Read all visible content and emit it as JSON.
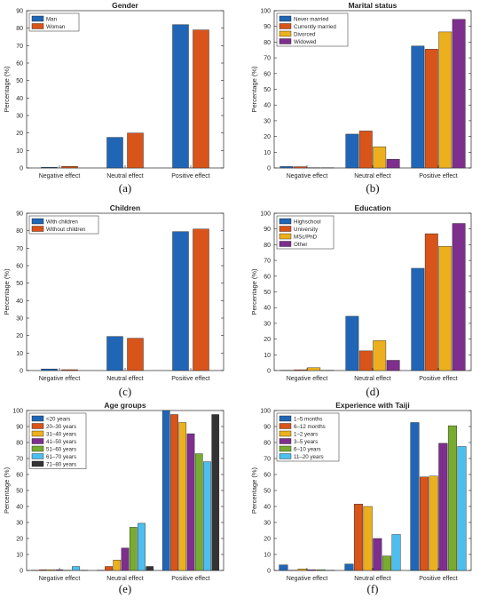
{
  "chart_data": [
    {
      "type": "bar",
      "title": "Gender",
      "ylabel": "Percentage (%)",
      "caption": "(a)",
      "categories": [
        "Negative effect",
        "Neutral effect",
        "Positive effect"
      ],
      "ylim": [
        0,
        90
      ],
      "yticks": [
        0,
        10,
        20,
        30,
        40,
        50,
        60,
        70,
        80,
        90
      ],
      "legend_position": "top-left",
      "series": [
        {
          "name": "Man",
          "color": "#2166b6",
          "values": [
            0.4,
            17.5,
            82
          ]
        },
        {
          "name": "Woman",
          "color": "#d8541a",
          "values": [
            0.9,
            20,
            79
          ]
        }
      ]
    },
    {
      "type": "bar",
      "title": "Marital status",
      "ylabel": "Percentage (%)",
      "caption": "(b)",
      "categories": [
        "Negative effect",
        "Neutral effect",
        "Positive effect"
      ],
      "ylim": [
        0,
        100
      ],
      "yticks": [
        0,
        10,
        20,
        30,
        40,
        50,
        60,
        70,
        80,
        90,
        100
      ],
      "legend_position": "top-left",
      "series": [
        {
          "name": "Never married",
          "color": "#2166b6",
          "values": [
            0.9,
            21.5,
            77.5
          ]
        },
        {
          "name": "Currently married",
          "color": "#d8541a",
          "values": [
            0.8,
            23.5,
            75.5
          ]
        },
        {
          "name": "Divorced",
          "color": "#ecb01f",
          "values": [
            0,
            13.5,
            86.5
          ]
        },
        {
          "name": "Widowed",
          "color": "#7e2f8e",
          "values": [
            0,
            5.5,
            94.5
          ]
        }
      ]
    },
    {
      "type": "bar",
      "title": "Children",
      "ylabel": "Percentage (%)",
      "caption": "(c)",
      "categories": [
        "Negative effect",
        "Neutral effect",
        "Positive effect"
      ],
      "ylim": [
        0,
        90
      ],
      "yticks": [
        0,
        10,
        20,
        30,
        40,
        50,
        60,
        70,
        80,
        90
      ],
      "legend_position": "top-left",
      "series": [
        {
          "name": "With children",
          "color": "#2166b6",
          "values": [
            0.9,
            19.5,
            79.5
          ]
        },
        {
          "name": "Without children",
          "color": "#d8541a",
          "values": [
            0.5,
            18.5,
            81
          ]
        }
      ]
    },
    {
      "type": "bar",
      "title": "Education",
      "ylabel": "Percentage (%)",
      "caption": "(d)",
      "categories": [
        "Negative effect",
        "Neutral effect",
        "Positive effect"
      ],
      "ylim": [
        0,
        100
      ],
      "yticks": [
        0,
        10,
        20,
        30,
        40,
        50,
        60,
        70,
        80,
        90,
        100
      ],
      "legend_position": "top-left",
      "series": [
        {
          "name": "Highschool",
          "color": "#2166b6",
          "values": [
            0,
            34.5,
            65
          ]
        },
        {
          "name": "University",
          "color": "#d8541a",
          "values": [
            0.5,
            12.5,
            87
          ]
        },
        {
          "name": "MSc/PhD",
          "color": "#ecb01f",
          "values": [
            1.8,
            19,
            79
          ]
        },
        {
          "name": "Other",
          "color": "#7e2f8e",
          "values": [
            0,
            6.5,
            93.5
          ]
        }
      ]
    },
    {
      "type": "bar",
      "title": "Age groups",
      "ylabel": "Percentage (%)",
      "caption": "(e)",
      "categories": [
        "Negative effect",
        "Neutral effect",
        "Positive effect"
      ],
      "ylim": [
        0,
        100
      ],
      "yticks": [
        0,
        10,
        20,
        30,
        40,
        50,
        60,
        70,
        80,
        90,
        100
      ],
      "legend_position": "top-left",
      "series": [
        {
          "name": "<20 years",
          "color": "#2166b6",
          "values": [
            0,
            0,
            100
          ]
        },
        {
          "name": "20–30 years",
          "color": "#d8541a",
          "values": [
            0.5,
            2.5,
            97.5
          ]
        },
        {
          "name": "31–40 years",
          "color": "#ecb01f",
          "values": [
            0.5,
            6.5,
            92.5
          ]
        },
        {
          "name": "41–50 years",
          "color": "#7e2f8e",
          "values": [
            0.5,
            14,
            85.5
          ]
        },
        {
          "name": "51–60 years",
          "color": "#77ac30",
          "values": [
            0,
            27,
            73
          ]
        },
        {
          "name": "61–70 years",
          "color": "#4dbeee",
          "values": [
            2.5,
            29.5,
            68
          ]
        },
        {
          "name": "71–80 years",
          "color": "#333333",
          "values": [
            0,
            2.5,
            97.5
          ]
        }
      ]
    },
    {
      "type": "bar",
      "title": "Experience with Taiji",
      "ylabel": "Percentage (%)",
      "caption": "(f)",
      "categories": [
        "Negative effect",
        "Neutral effect",
        "Positive effect"
      ],
      "ylim": [
        0,
        100
      ],
      "yticks": [
        0,
        10,
        20,
        30,
        40,
        50,
        60,
        70,
        80,
        90,
        100
      ],
      "legend_position": "top-left",
      "series": [
        {
          "name": "1–5 months",
          "color": "#2166b6",
          "values": [
            3.5,
            4,
            92.5
          ]
        },
        {
          "name": "6–12 months",
          "color": "#d8541a",
          "values": [
            0,
            41.5,
            58.5
          ]
        },
        {
          "name": "1–2 years",
          "color": "#ecb01f",
          "values": [
            1,
            40,
            59
          ]
        },
        {
          "name": "3–5 years",
          "color": "#7e2f8e",
          "values": [
            0.5,
            20,
            79.5
          ]
        },
        {
          "name": "6–10 years",
          "color": "#77ac30",
          "values": [
            0.5,
            9,
            90.5
          ]
        },
        {
          "name": "11–20 years",
          "color": "#4dbeee",
          "values": [
            0,
            22.5,
            77.5
          ]
        }
      ]
    }
  ]
}
